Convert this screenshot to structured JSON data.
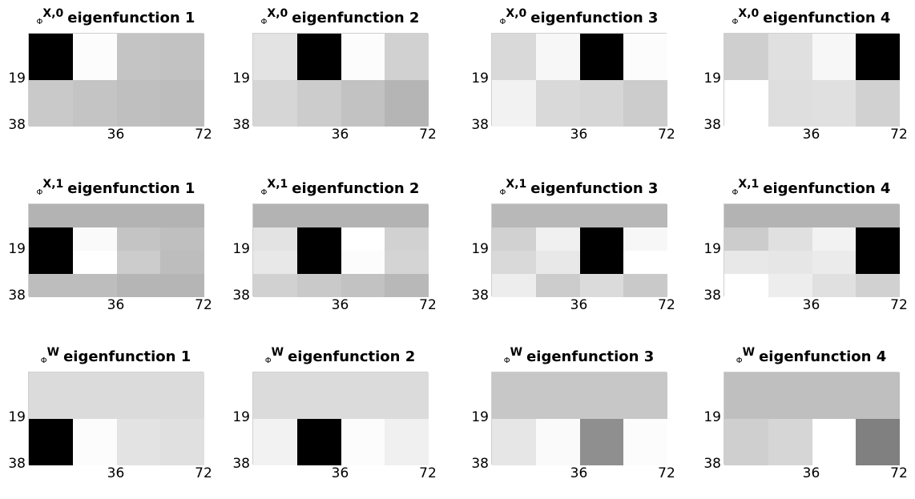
{
  "chart_data": [
    {
      "type": "heatmap",
      "title": "eigenfunction 1",
      "title_phi": "Φ",
      "title_sup": "X,0",
      "yticks": [
        "19",
        "38"
      ],
      "xticks": [
        "36",
        "72"
      ],
      "rows": 2,
      "cols": 4,
      "values": [
        [
          0.0,
          0.99,
          0.77,
          0.76
        ],
        [
          0.79,
          0.77,
          0.75,
          0.74
        ]
      ]
    },
    {
      "type": "heatmap",
      "title": "eigenfunction 2",
      "title_phi": "Φ",
      "title_sup": "X,0",
      "yticks": [
        "19",
        "38"
      ],
      "xticks": [
        "36",
        "72"
      ],
      "rows": 2,
      "cols": 4,
      "values": [
        [
          0.89,
          0.0,
          0.99,
          0.82
        ],
        [
          0.84,
          0.8,
          0.76,
          0.71
        ]
      ]
    },
    {
      "type": "heatmap",
      "title": "eigenfunction 3",
      "title_phi": "Φ",
      "title_sup": "X,0",
      "yticks": [
        "19",
        "38"
      ],
      "xticks": [
        "36",
        "72"
      ],
      "rows": 2,
      "cols": 4,
      "values": [
        [
          0.85,
          0.97,
          0.0,
          0.99
        ],
        [
          0.95,
          0.85,
          0.84,
          0.8
        ]
      ]
    },
    {
      "type": "heatmap",
      "title": "eigenfunction 4",
      "title_phi": "Φ",
      "title_sup": "X,0",
      "yticks": [
        "19",
        "38"
      ],
      "xticks": [
        "36",
        "72"
      ],
      "rows": 2,
      "cols": 4,
      "values": [
        [
          0.81,
          0.88,
          0.97,
          0.0
        ],
        [
          1.0,
          0.87,
          0.88,
          0.82
        ]
      ]
    },
    {
      "type": "heatmap",
      "title": "eigenfunction 1",
      "title_phi": "Φ",
      "title_sup": "X,1",
      "yticks": [
        "19",
        "38"
      ],
      "xticks": [
        "36",
        "72"
      ],
      "rows": 4,
      "cols": 4,
      "values": [
        [
          0.7,
          0.7,
          0.7,
          0.7
        ],
        [
          0.0,
          0.98,
          0.77,
          0.75
        ],
        [
          0.0,
          1.0,
          0.8,
          0.74
        ],
        [
          0.74,
          0.74,
          0.71,
          0.71
        ]
      ]
    },
    {
      "type": "heatmap",
      "title": "eigenfunction 2",
      "title_phi": "Φ",
      "title_sup": "X,1",
      "yticks": [
        "19",
        "38"
      ],
      "xticks": [
        "36",
        "72"
      ],
      "rows": 4,
      "cols": 4,
      "values": [
        [
          0.7,
          0.7,
          0.7,
          0.7
        ],
        [
          0.89,
          0.0,
          1.0,
          0.82
        ],
        [
          0.91,
          0.0,
          0.99,
          0.83
        ],
        [
          0.82,
          0.79,
          0.76,
          0.72
        ]
      ]
    },
    {
      "type": "heatmap",
      "title": "eigenfunction 3",
      "title_phi": "Φ",
      "title_sup": "X,1",
      "yticks": [
        "19",
        "38"
      ],
      "xticks": [
        "36",
        "72"
      ],
      "rows": 4,
      "cols": 4,
      "values": [
        [
          0.72,
          0.72,
          0.72,
          0.72
        ],
        [
          0.82,
          0.94,
          0.0,
          0.97
        ],
        [
          0.85,
          0.91,
          0.0,
          1.0
        ],
        [
          0.93,
          0.8,
          0.86,
          0.79
        ]
      ]
    },
    {
      "type": "heatmap",
      "title": "eigenfunction 4",
      "title_phi": "Φ",
      "title_sup": "X,1",
      "yticks": [
        "19",
        "38"
      ],
      "xticks": [
        "36",
        "72"
      ],
      "rows": 4,
      "cols": 4,
      "values": [
        [
          0.7,
          0.7,
          0.7,
          0.7
        ],
        [
          0.8,
          0.88,
          0.95,
          0.0
        ],
        [
          0.91,
          0.9,
          0.92,
          0.0
        ],
        [
          1.0,
          0.93,
          0.88,
          0.82
        ]
      ]
    },
    {
      "type": "heatmap",
      "title": "eigenfunction 1",
      "title_phi": "Φ",
      "title_sup": "W",
      "yticks": [
        "19",
        "38"
      ],
      "xticks": [
        "36",
        "72"
      ],
      "rows": 2,
      "cols": 4,
      "values": [
        [
          0.86,
          0.86,
          0.86,
          0.86
        ],
        [
          0.0,
          0.99,
          0.89,
          0.88
        ]
      ]
    },
    {
      "type": "heatmap",
      "title": "eigenfunction 2",
      "title_phi": "Φ",
      "title_sup": "W",
      "yticks": [
        "19",
        "38"
      ],
      "xticks": [
        "36",
        "72"
      ],
      "rows": 2,
      "cols": 4,
      "values": [
        [
          0.86,
          0.86,
          0.86,
          0.86
        ],
        [
          0.95,
          0.0,
          0.99,
          0.94
        ]
      ]
    },
    {
      "type": "heatmap",
      "title": "eigenfunction 3",
      "title_phi": "Φ",
      "title_sup": "W",
      "yticks": [
        "19",
        "38"
      ],
      "xticks": [
        "36",
        "72"
      ],
      "rows": 2,
      "cols": 4,
      "values": [
        [
          0.78,
          0.78,
          0.78,
          0.78
        ],
        [
          0.9,
          0.98,
          0.56,
          0.99
        ]
      ]
    },
    {
      "type": "heatmap",
      "title": "eigenfunction 4",
      "title_phi": "Φ",
      "title_sup": "W",
      "yticks": [
        "19",
        "38"
      ],
      "xticks": [
        "36",
        "72"
      ],
      "rows": 2,
      "cols": 4,
      "values": [
        [
          0.75,
          0.75,
          0.75,
          0.75
        ],
        [
          0.81,
          0.84,
          1.0,
          0.5
        ]
      ]
    }
  ]
}
